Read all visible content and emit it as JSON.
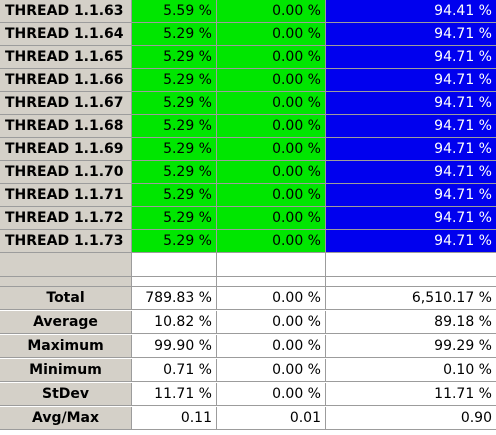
{
  "threads": [
    {
      "name": "THREAD 1.1.63",
      "c1": "5.59 %",
      "c2": "0.00 %",
      "c3": "94.41 %"
    },
    {
      "name": "THREAD 1.1.64",
      "c1": "5.29 %",
      "c2": "0.00 %",
      "c3": "94.71 %"
    },
    {
      "name": "THREAD 1.1.65",
      "c1": "5.29 %",
      "c2": "0.00 %",
      "c3": "94.71 %"
    },
    {
      "name": "THREAD 1.1.66",
      "c1": "5.29 %",
      "c2": "0.00 %",
      "c3": "94.71 %"
    },
    {
      "name": "THREAD 1.1.67",
      "c1": "5.29 %",
      "c2": "0.00 %",
      "c3": "94.71 %"
    },
    {
      "name": "THREAD 1.1.68",
      "c1": "5.29 %",
      "c2": "0.00 %",
      "c3": "94.71 %"
    },
    {
      "name": "THREAD 1.1.69",
      "c1": "5.29 %",
      "c2": "0.00 %",
      "c3": "94.71 %"
    },
    {
      "name": "THREAD 1.1.70",
      "c1": "5.29 %",
      "c2": "0.00 %",
      "c3": "94.71 %"
    },
    {
      "name": "THREAD 1.1.71",
      "c1": "5.29 %",
      "c2": "0.00 %",
      "c3": "94.71 %"
    },
    {
      "name": "THREAD 1.1.72",
      "c1": "5.29 %",
      "c2": "0.00 %",
      "c3": "94.71 %"
    },
    {
      "name": "THREAD 1.1.73",
      "c1": "5.29 %",
      "c2": "0.00 %",
      "c3": "94.71 %"
    }
  ],
  "stats": [
    {
      "name": "Total",
      "c1": "789.83 %",
      "c2": "0.00 %",
      "c3": "6,510.17 %"
    },
    {
      "name": "Average",
      "c1": "10.82 %",
      "c2": "0.00 %",
      "c3": "89.18 %"
    },
    {
      "name": "Maximum",
      "c1": "99.90 %",
      "c2": "0.00 %",
      "c3": "99.29 %"
    },
    {
      "name": "Minimum",
      "c1": "0.71 %",
      "c2": "0.00 %",
      "c3": "0.10 %"
    },
    {
      "name": "StDev",
      "c1": "11.71 %",
      "c2": "0.00 %",
      "c3": "11.71 %"
    },
    {
      "name": "Avg/Max",
      "c1": "0.11",
      "c2": "0.01",
      "c3": "0.90"
    }
  ],
  "colors": {
    "green": "#00e600",
    "blue": "#0000ee",
    "header_gray": "#d4d0c8"
  }
}
